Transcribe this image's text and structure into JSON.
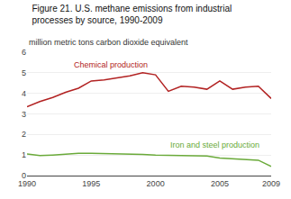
{
  "chart_data": {
    "type": "line",
    "title": [
      "Figure 21. U.S. methane emissions from industrial",
      "processes by source, 1990-2009"
    ],
    "ylabel": "million metric tons carbon dioxide equivalent",
    "x": [
      1990,
      1991,
      1992,
      1993,
      1994,
      1995,
      1996,
      1997,
      1998,
      1999,
      2000,
      2001,
      2002,
      2003,
      2004,
      2005,
      2006,
      2007,
      2008,
      2009
    ],
    "series": [
      {
        "color": "#b22222",
        "values": [
          3.35,
          3.6,
          3.8,
          4.05,
          4.25,
          4.6,
          4.65,
          4.75,
          4.85,
          5.0,
          4.9,
          4.1,
          4.35,
          4.3,
          4.2,
          4.6,
          4.2,
          4.3,
          4.35,
          3.75
        ]
      },
      {
        "color": "#6aaa3a",
        "values": [
          1.05,
          0.97,
          1.0,
          1.05,
          1.08,
          1.08,
          1.07,
          1.07,
          1.05,
          1.03,
          1.0,
          0.98,
          0.97,
          0.96,
          0.95,
          0.85,
          0.82,
          0.8,
          0.75,
          0.45
        ]
      }
    ],
    "annotations": [
      {
        "text": "Chemical production",
        "x": 1993.5,
        "y": 5.1,
        "color": "#b22222"
      },
      {
        "text": "Iron and steel production",
        "x": 2001.0,
        "y": 1.2,
        "color": "#6aaa3a"
      }
    ],
    "xlim": [
      1990,
      2009
    ],
    "xticks": [
      1990,
      1995,
      2000,
      2005,
      2009
    ],
    "ylim": [
      0,
      6
    ],
    "yticks": [
      0,
      1,
      2,
      3,
      4,
      5,
      6
    ],
    "grid": true
  }
}
